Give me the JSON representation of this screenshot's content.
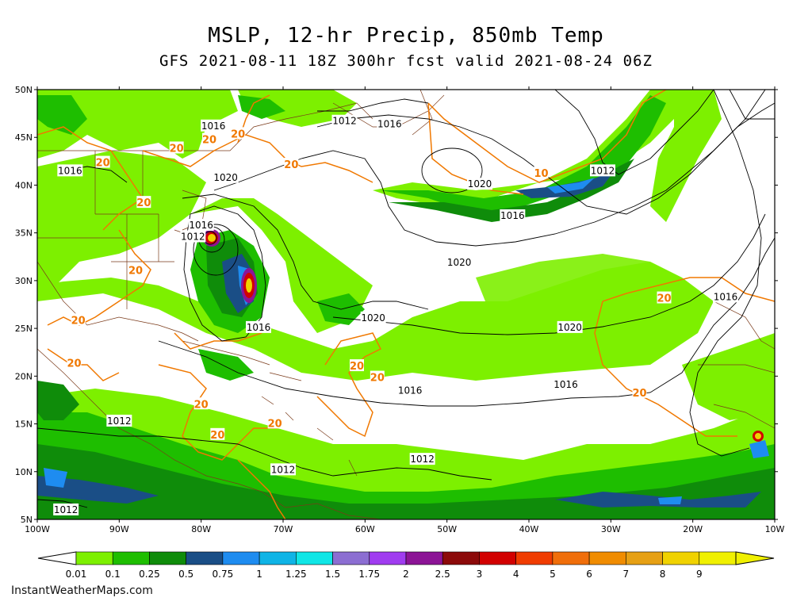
{
  "header": {
    "title": "MSLP, 12-hr Precip, 850mb Temp",
    "subtitle": "GFS 2021-08-11 18Z 300hr fcst valid 2021-08-24 06Z"
  },
  "axes": {
    "lat_labels": [
      "50N",
      "45N",
      "40N",
      "35N",
      "30N",
      "25N",
      "20N",
      "15N",
      "10N",
      "5N"
    ],
    "lon_labels": [
      "100W",
      "90W",
      "80W",
      "70W",
      "60W",
      "50W",
      "40W",
      "30W",
      "20W",
      "10W"
    ]
  },
  "isobar_labels": [
    {
      "text": "1012",
      "lon": -81,
      "lat": 34.6
    },
    {
      "text": "1016",
      "lon": -80,
      "lat": 35.8
    },
    {
      "text": "1020",
      "lon": -77,
      "lat": 40.8
    },
    {
      "text": "1016",
      "lon": -78.5,
      "lat": 46.2
    },
    {
      "text": "1012",
      "lon": -62.5,
      "lat": 46.7
    },
    {
      "text": "1016",
      "lon": -57,
      "lat": 46.4
    },
    {
      "text": "1016",
      "lon": -96,
      "lat": 41.5
    },
    {
      "text": "1020",
      "lon": -46,
      "lat": 40.1
    },
    {
      "text": "1012",
      "lon": -31,
      "lat": 41.5
    },
    {
      "text": "1016",
      "lon": -42,
      "lat": 36.8
    },
    {
      "text": "1020",
      "lon": -48.5,
      "lat": 31.9
    },
    {
      "text": "1016",
      "lon": -73,
      "lat": 25.1
    },
    {
      "text": "1020",
      "lon": -59,
      "lat": 26.1
    },
    {
      "text": "1020",
      "lon": -35,
      "lat": 25.1
    },
    {
      "text": "1016",
      "lon": -16,
      "lat": 28.3
    },
    {
      "text": "1016",
      "lon": -35.5,
      "lat": 19.1
    },
    {
      "text": "1016",
      "lon": -54.5,
      "lat": 18.5
    },
    {
      "text": "1012",
      "lon": -90,
      "lat": 15.3
    },
    {
      "text": "1012",
      "lon": -70,
      "lat": 10.2
    },
    {
      "text": "1012",
      "lon": -53,
      "lat": 11.3
    },
    {
      "text": "1012",
      "lon": -96.5,
      "lat": 6.0
    }
  ],
  "temp_labels": [
    {
      "text": "20",
      "lon": -83,
      "lat": 43.9
    },
    {
      "text": "20",
      "lon": -79,
      "lat": 44.8
    },
    {
      "text": "20",
      "lon": -75.5,
      "lat": 45.4
    },
    {
      "text": "20",
      "lon": -69,
      "lat": 42.2
    },
    {
      "text": "20",
      "lon": -92,
      "lat": 42.4
    },
    {
      "text": "20",
      "lon": -87,
      "lat": 38.2
    },
    {
      "text": "20",
      "lon": -88,
      "lat": 31.1
    },
    {
      "text": "20",
      "lon": -95,
      "lat": 25.9
    },
    {
      "text": "20",
      "lon": -95.5,
      "lat": 21.4
    },
    {
      "text": "20",
      "lon": -80,
      "lat": 17.1
    },
    {
      "text": "20",
      "lon": -78,
      "lat": 13.9
    },
    {
      "text": "20",
      "lon": -71,
      "lat": 15.1
    },
    {
      "text": "20",
      "lon": -58.5,
      "lat": 19.9
    },
    {
      "text": "20",
      "lon": -61,
      "lat": 21.1
    },
    {
      "text": "10",
      "lon": -38.5,
      "lat": 41.3
    },
    {
      "text": "20",
      "lon": -23.5,
      "lat": 28.2
    },
    {
      "text": "20",
      "lon": -26.5,
      "lat": 18.3
    }
  ],
  "legend": {
    "labels": [
      "0.01",
      "0.1",
      "0.25",
      "0.5",
      "0.75",
      "1",
      "1.25",
      "1.5",
      "1.75",
      "2",
      "2.5",
      "3",
      "4",
      "5",
      "6",
      "7",
      "8",
      "9"
    ],
    "colors": [
      "#7df000",
      "#1ebe00",
      "#0f8c0a",
      "#1a4e86",
      "#1e8cf0",
      "#0fb4e6",
      "#10e6e6",
      "#8c6ed2",
      "#a03cf0",
      "#8c1496",
      "#8c0a0a",
      "#d20000",
      "#f03c00",
      "#f06e0a",
      "#f08c00",
      "#e6a014",
      "#f0d200",
      "#f0f000"
    ]
  },
  "colors": {
    "precip_light": "#7df000",
    "precip_mid": "#1ebe00",
    "precip_dark": "#0f8c0a",
    "isobar": "#000000",
    "temp_contour": "#f07800",
    "border": "#7a3a1a"
  },
  "credit": "InstantWeatherMaps.com"
}
